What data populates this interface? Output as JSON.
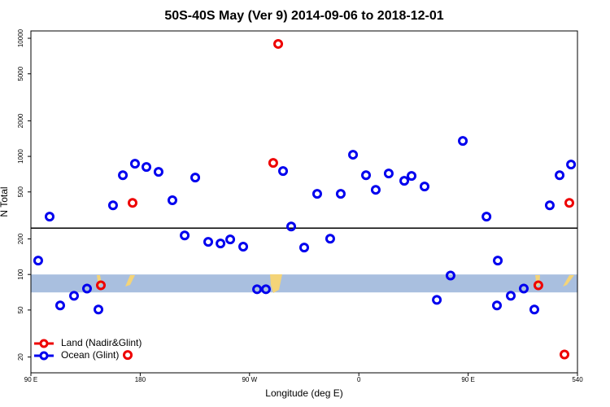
{
  "chart_data": {
    "type": "scatter",
    "title": "50S-40S May (Ver 9)   2014-09-06 to 2018-12-01",
    "x_label": "Longitude (deg E)",
    "y_label": "N Total",
    "log_y": true,
    "xlim": [
      90,
      540
    ],
    "ylim": [
      14.7,
      11540
    ],
    "xticks": [
      {
        "value": 90,
        "label": "90 E"
      },
      180,
      {
        "value": 270,
        "label": "90 W"
      },
      {
        "value": 360,
        "label": "0"
      },
      {
        "value": 450,
        "label": "90 E"
      },
      540
    ],
    "yticks": [
      20,
      50,
      100,
      200,
      500,
      1000,
      2000,
      5000,
      10000
    ],
    "reference_line": 247,
    "band": [
      70.5,
      100
    ],
    "band_color": "#a9bfdf",
    "legend": "bottom-left",
    "series": [
      {
        "name": "Land (Nadir&Glint)",
        "color": "#ee0000",
        "x": [
          147.6,
          169.7,
          173.7,
          289.5,
          293.6,
          507.8,
          529.3,
          533.3
        ],
        "values": [
          81,
          20.8,
          404,
          881,
          8960,
          81,
          21,
          404
        ]
      },
      {
        "name": "Ocean (Glint)",
        "color": "#0000ee",
        "x": [
          96.0,
          105.4,
          114.1,
          125.5,
          136.2,
          145.6,
          157.6,
          165.7,
          175.7,
          185.1,
          195.1,
          206.5,
          216.6,
          225.3,
          236.0,
          246.1,
          254.1,
          264.8,
          276.2,
          283.5,
          297.6,
          304.3,
          315.0,
          325.7,
          336.4,
          345.1,
          355.2,
          365.9,
          373.9,
          384.6,
          397.4,
          403.4,
          414.1,
          424.2,
          435.5,
          445.6,
          465.1,
          473.7,
          474.4,
          485.1,
          495.8,
          504.5,
          517.2,
          525.3,
          534.7
        ],
        "values": [
          131,
          309,
          54.7,
          66,
          76,
          50.5,
          385,
          693,
          866,
          813,
          740,
          425,
          214,
          662,
          189,
          183,
          198,
          172,
          75,
          75,
          751,
          255,
          169,
          482,
          201,
          482,
          1033,
          693,
          521,
          717,
          621,
          683,
          556,
          61,
          98,
          1352,
          309,
          54.7,
          131,
          66,
          76,
          50.5,
          385,
          693,
          853
        ]
      }
    ]
  }
}
